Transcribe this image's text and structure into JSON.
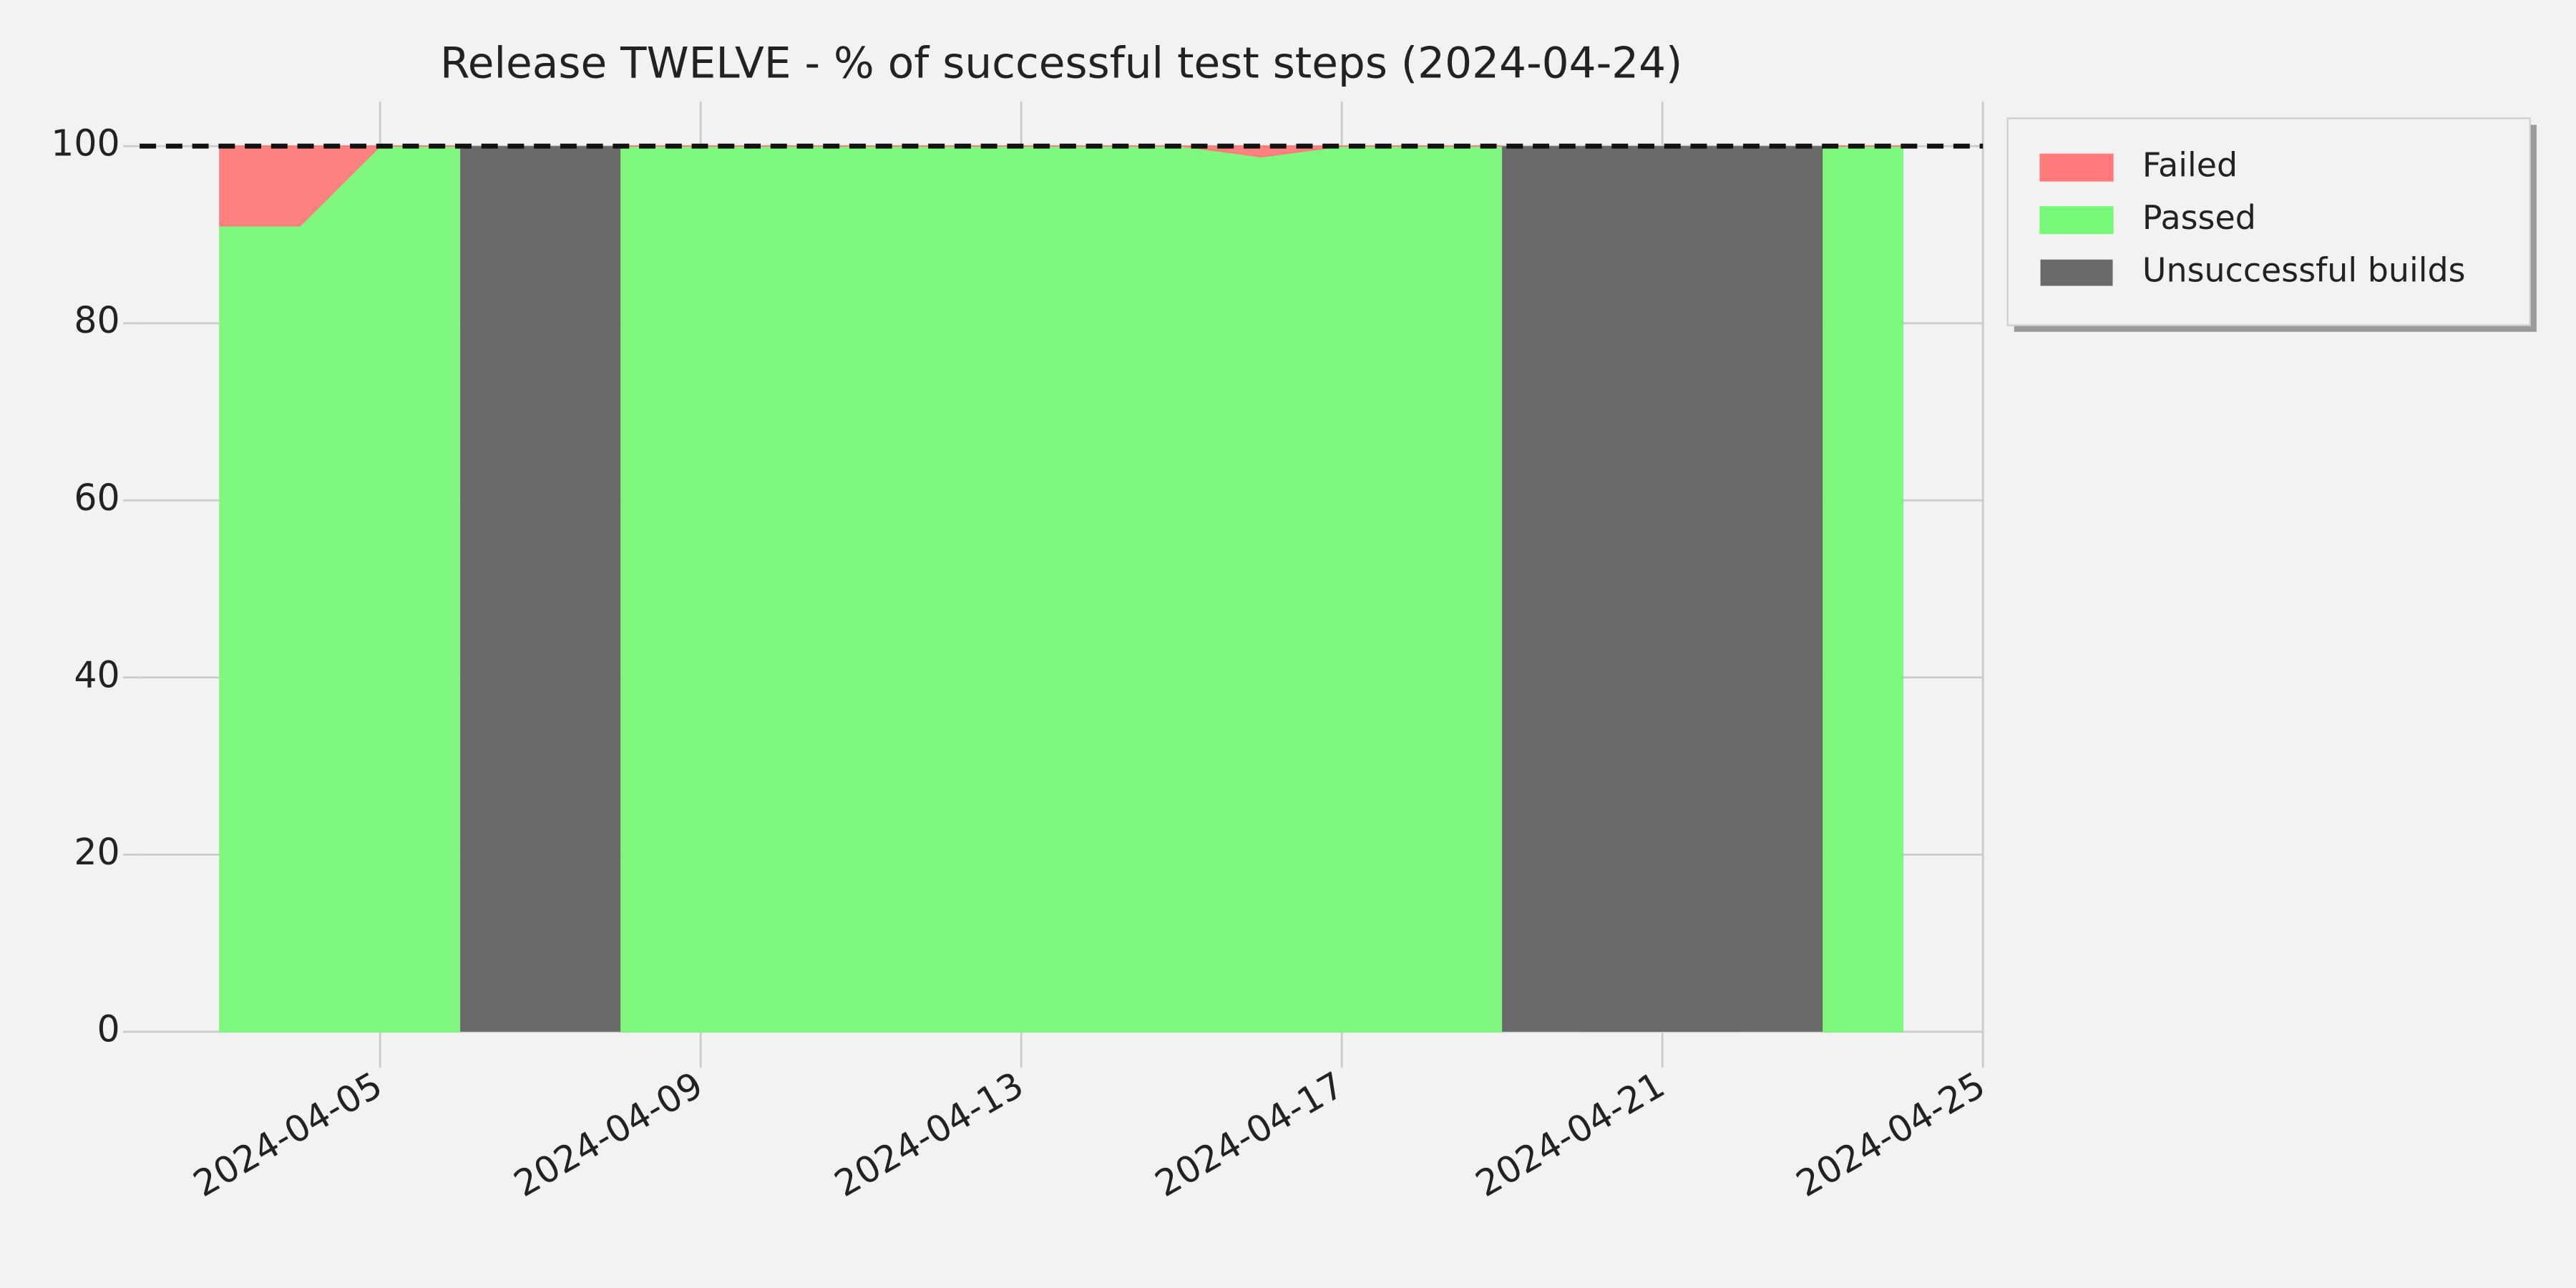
{
  "chart_data": {
    "type": "area",
    "title": "Release TWELVE - % of successful test steps (2024-04-24)",
    "x": [
      "2024-04-03",
      "2024-04-04",
      "2024-04-05",
      "2024-04-06",
      "2024-04-07",
      "2024-04-08",
      "2024-04-09",
      "2024-04-10",
      "2024-04-11",
      "2024-04-12",
      "2024-04-13",
      "2024-04-14",
      "2024-04-15",
      "2024-04-16",
      "2024-04-17",
      "2024-04-18",
      "2024-04-19",
      "2024-04-20",
      "2024-04-21",
      "2024-04-22",
      "2024-04-23",
      "2024-04-24"
    ],
    "series": [
      {
        "name": "Failed",
        "color": "#ff7b7b",
        "kind": "area",
        "values": [
          9,
          9,
          0,
          0,
          null,
          0,
          0,
          0,
          0,
          0,
          0,
          0,
          0,
          1.2,
          0,
          0,
          0,
          null,
          null,
          null,
          0,
          0
        ]
      },
      {
        "name": "Passed",
        "color": "#78f878",
        "kind": "area",
        "values": [
          91,
          91,
          100,
          100,
          null,
          100,
          100,
          100,
          100,
          100,
          100,
          100,
          100,
          98.8,
          100,
          100,
          100,
          null,
          null,
          null,
          100,
          100
        ]
      },
      {
        "name": "Unsuccessful builds",
        "color": "#696969",
        "kind": "band",
        "values": [
          null,
          null,
          null,
          null,
          100,
          null,
          null,
          null,
          null,
          null,
          null,
          null,
          null,
          null,
          null,
          null,
          null,
          100,
          100,
          100,
          null,
          null
        ]
      }
    ],
    "reference_line": 100,
    "xlim": [
      "2024-04-02",
      "2024-04-25"
    ],
    "xticks": [
      "2024-04-05",
      "2024-04-09",
      "2024-04-13",
      "2024-04-17",
      "2024-04-21",
      "2024-04-25"
    ],
    "ylim": [
      0,
      105
    ],
    "yticks": [
      0,
      20,
      40,
      60,
      80,
      100
    ],
    "grid": true,
    "legend": "outside-upper-right"
  }
}
